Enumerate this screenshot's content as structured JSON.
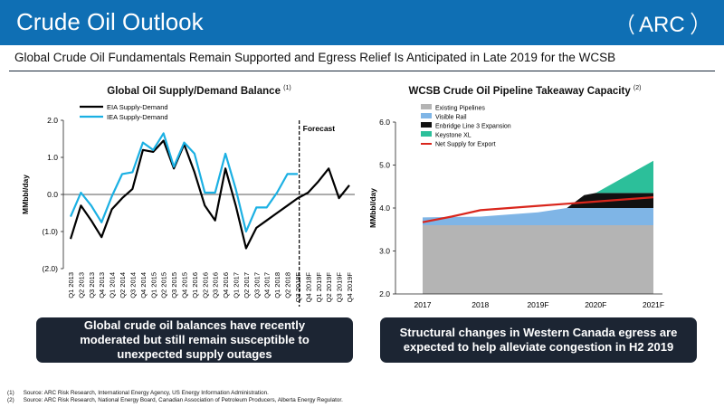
{
  "header": {
    "title": "Crude Oil Outlook",
    "logo_text": "ARC"
  },
  "subtitle": "Global Crude Oil Fundamentals Remain Supported and Egress Relief Is Anticipated in Late 2019 for the WCSB",
  "colors": {
    "header_bg": "#0f6fb4",
    "eia": "#000000",
    "iea": "#1bb0e3",
    "existing": "#b4b4b4",
    "visible_rail": "#7fb5e6",
    "enbridge": "#111111",
    "keystone": "#2cbf9a",
    "net_supply": "#d9261c",
    "callout_bg": "#1c2533"
  },
  "chart_left": {
    "title": "Global Oil Supply/Demand Balance",
    "title_note": "(1)",
    "ylabel": "MMbbl/day",
    "forecast_label": "Forecast",
    "legend": [
      "EIA Supply-Demand",
      "IEA Supply-Demand"
    ],
    "callout": "Global crude oil balances have recently moderated but still remain susceptible to unexpected supply outages"
  },
  "chart_right": {
    "title": "WCSB Crude Oil Pipeline Takeaway Capacity",
    "title_note": "(2)",
    "ylabel": "MMbbl/day",
    "legend": [
      "Existing Pipelines",
      "Visible Rail",
      "Enbridge Line 3 Expansion",
      "Keystone XL",
      "Net Supply for Export"
    ],
    "callout": "Structural changes in Western Canada egress are expected to help alleviate congestion in H2 2019"
  },
  "chart_data": [
    {
      "type": "line",
      "title": "Global Oil Supply/Demand Balance",
      "ylabel": "MMbbl/day",
      "ylim": [
        -2.0,
        2.0
      ],
      "yticks": [
        2.0,
        1.0,
        0.0,
        -1.0,
        -2.0
      ],
      "ytick_labels": [
        "2.0",
        "1.0",
        "0.0",
        "(1.0)",
        "(2.0)"
      ],
      "categories": [
        "Q1 2013",
        "Q2 2013",
        "Q3 2013",
        "Q4 2013",
        "Q1 2014",
        "Q2 2014",
        "Q3 2014",
        "Q4 2014",
        "Q1 2015",
        "Q2 2015",
        "Q3 2015",
        "Q4 2015",
        "Q1 2016",
        "Q2 2016",
        "Q3 2016",
        "Q4 2016",
        "Q1 2017",
        "Q2 2017",
        "Q3 2017",
        "Q4 2017",
        "Q1 2018",
        "Q2 2018",
        "Q3 2018F",
        "Q4 2018F",
        "Q1 2019F",
        "Q2 2019F",
        "Q3 2019F",
        "Q4 2019F"
      ],
      "forecast_start": "Q3 2018F",
      "series": [
        {
          "name": "EIA Supply-Demand",
          "values": [
            -1.2,
            -0.3,
            -0.7,
            -1.15,
            -0.4,
            -0.1,
            0.15,
            1.2,
            1.15,
            1.45,
            0.7,
            1.35,
            0.6,
            -0.3,
            -0.7,
            0.7,
            -0.3,
            -1.45,
            -0.9,
            -0.7,
            -0.5,
            -0.3,
            -0.1,
            0.05,
            0.35,
            0.7,
            -0.1,
            0.25
          ]
        },
        {
          "name": "IEA Supply-Demand",
          "values": [
            -0.6,
            0.05,
            -0.3,
            -0.75,
            -0.05,
            0.55,
            0.6,
            1.4,
            1.2,
            1.65,
            0.75,
            1.4,
            1.1,
            0.05,
            0.05,
            1.1,
            0.15,
            -1.0,
            -0.35,
            -0.35,
            0.05,
            0.55,
            0.55,
            null,
            null,
            null,
            null,
            null
          ]
        }
      ],
      "legend_position": "top-left",
      "grid": false
    },
    {
      "type": "area",
      "title": "WCSB Crude Oil Pipeline Takeaway Capacity",
      "ylabel": "MMbbl/day",
      "ylim": [
        2.0,
        6.0
      ],
      "yticks": [
        2.0,
        3.0,
        4.0,
        5.0,
        6.0
      ],
      "ytick_labels": [
        "2.0",
        "3.0",
        "4.0",
        "5.0",
        "6.0"
      ],
      "x": [
        "2017",
        "2018",
        "2019F",
        "2020F",
        "2021F"
      ],
      "x_values": [
        2017,
        2018,
        2019,
        2020,
        2021
      ],
      "x_range": [
        2017.0,
        2021.0
      ],
      "series": [
        {
          "name": "Existing Pipelines",
          "kind": "area",
          "points": [
            [
              2017.0,
              3.6
            ],
            [
              2021.0,
              3.6
            ]
          ]
        },
        {
          "name": "Visible Rail",
          "kind": "area",
          "points": [
            [
              2017.0,
              0.18
            ],
            [
              2018.0,
              0.2
            ],
            [
              2019.0,
              0.3
            ],
            [
              2019.5,
              0.4
            ],
            [
              2020.0,
              0.4
            ],
            [
              2021.0,
              0.4
            ]
          ]
        },
        {
          "name": "Enbridge Line 3 Expansion",
          "kind": "area",
          "points": [
            [
              2017.0,
              0
            ],
            [
              2019.5,
              0
            ],
            [
              2019.8,
              0.3
            ],
            [
              2020.0,
              0.35
            ],
            [
              2021.0,
              0.35
            ]
          ]
        },
        {
          "name": "Keystone XL",
          "kind": "area",
          "points": [
            [
              2017.0,
              0
            ],
            [
              2020.0,
              0
            ],
            [
              2021.0,
              0.75
            ]
          ]
        },
        {
          "name": "Net Supply for Export",
          "kind": "line",
          "points": [
            [
              2017.0,
              3.67
            ],
            [
              2017.5,
              3.8
            ],
            [
              2018.0,
              3.95
            ],
            [
              2019.0,
              4.05
            ],
            [
              2020.0,
              4.15
            ],
            [
              2021.0,
              4.25
            ]
          ]
        }
      ],
      "legend_position": "top-left",
      "grid": false
    }
  ],
  "footnotes": [
    {
      "num": "(1)",
      "text": "Source: ARC Risk Research, International Energy Agency, US Energy Information Administration."
    },
    {
      "num": "(2)",
      "text": "Source: ARC Risk Research, National Energy Board, Canadian Association of Petroleum Producers, Alberta Energy Regulator."
    }
  ]
}
